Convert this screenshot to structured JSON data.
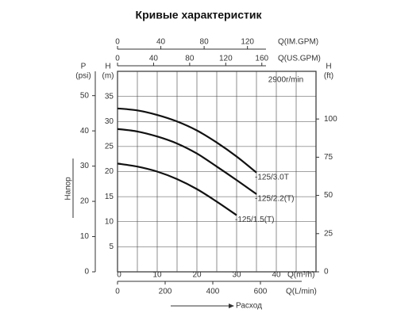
{
  "chart_data": {
    "type": "line",
    "title": "Кривые характеристик",
    "speed_label": "2900r/min",
    "y_axis_title": "Напор",
    "x_axis_title": "Расход",
    "xlim": [
      0,
      50
    ],
    "xticks": [
      0,
      10,
      20,
      30,
      40
    ],
    "x_label": "Q(m³/h)",
    "xgrid": [
      0,
      5,
      10,
      15,
      20,
      25,
      30,
      35,
      40,
      45,
      50
    ],
    "ylim": [
      0,
      40
    ],
    "yticks": [
      5,
      10,
      15,
      20,
      25,
      30,
      35
    ],
    "y_label": [
      "H",
      "(m)"
    ],
    "ygrid": [
      0,
      5,
      10,
      15,
      20,
      25,
      30,
      35,
      40
    ],
    "extra_axes": [
      {
        "side": "top",
        "row": 0,
        "lim": [
          0,
          183.3
        ],
        "ticks": [
          0,
          40,
          80,
          120
        ],
        "label": "Q(IM.GPM)"
      },
      {
        "side": "top",
        "row": 1,
        "lim": [
          0,
          220.1
        ],
        "ticks": [
          0,
          40,
          80,
          120,
          160
        ],
        "label": "Q(US.GPM)"
      },
      {
        "side": "bottom",
        "row": 1,
        "lim": [
          0,
          833.3
        ],
        "ticks": [
          0,
          200,
          400,
          600
        ],
        "label": "Q(L/min)"
      },
      {
        "side": "left",
        "row": 1,
        "lim": [
          0,
          56.9
        ],
        "ticks": [
          0,
          10,
          20,
          30,
          40,
          50
        ],
        "label": [
          "P",
          "(psi)"
        ]
      },
      {
        "side": "right",
        "row": 0,
        "lim": [
          0,
          131.2
        ],
        "ticks": [
          0,
          25,
          50,
          75,
          100
        ],
        "label": [
          "H",
          "(ft)"
        ]
      }
    ],
    "series": [
      {
        "name": "-125/3.0T",
        "color": "#111111",
        "x": [
          0,
          5,
          10,
          15,
          20,
          25,
          30,
          35
        ],
        "values": [
          32.6,
          32.2,
          31.3,
          30,
          28.2,
          25.8,
          23,
          19.8
        ]
      },
      {
        "name": "-125/2.2(T)",
        "color": "#111111",
        "x": [
          0,
          5,
          10,
          15,
          20,
          25,
          30,
          35
        ],
        "values": [
          28.5,
          28,
          27,
          25.6,
          23.6,
          21,
          18.3,
          15.5
        ]
      },
      {
        "name": "-125/1.5(T)",
        "color": "#111111",
        "x": [
          0,
          5,
          10,
          15,
          20,
          25,
          30
        ],
        "values": [
          21.6,
          21,
          20,
          18.5,
          16.5,
          14,
          11.3
        ]
      }
    ]
  }
}
